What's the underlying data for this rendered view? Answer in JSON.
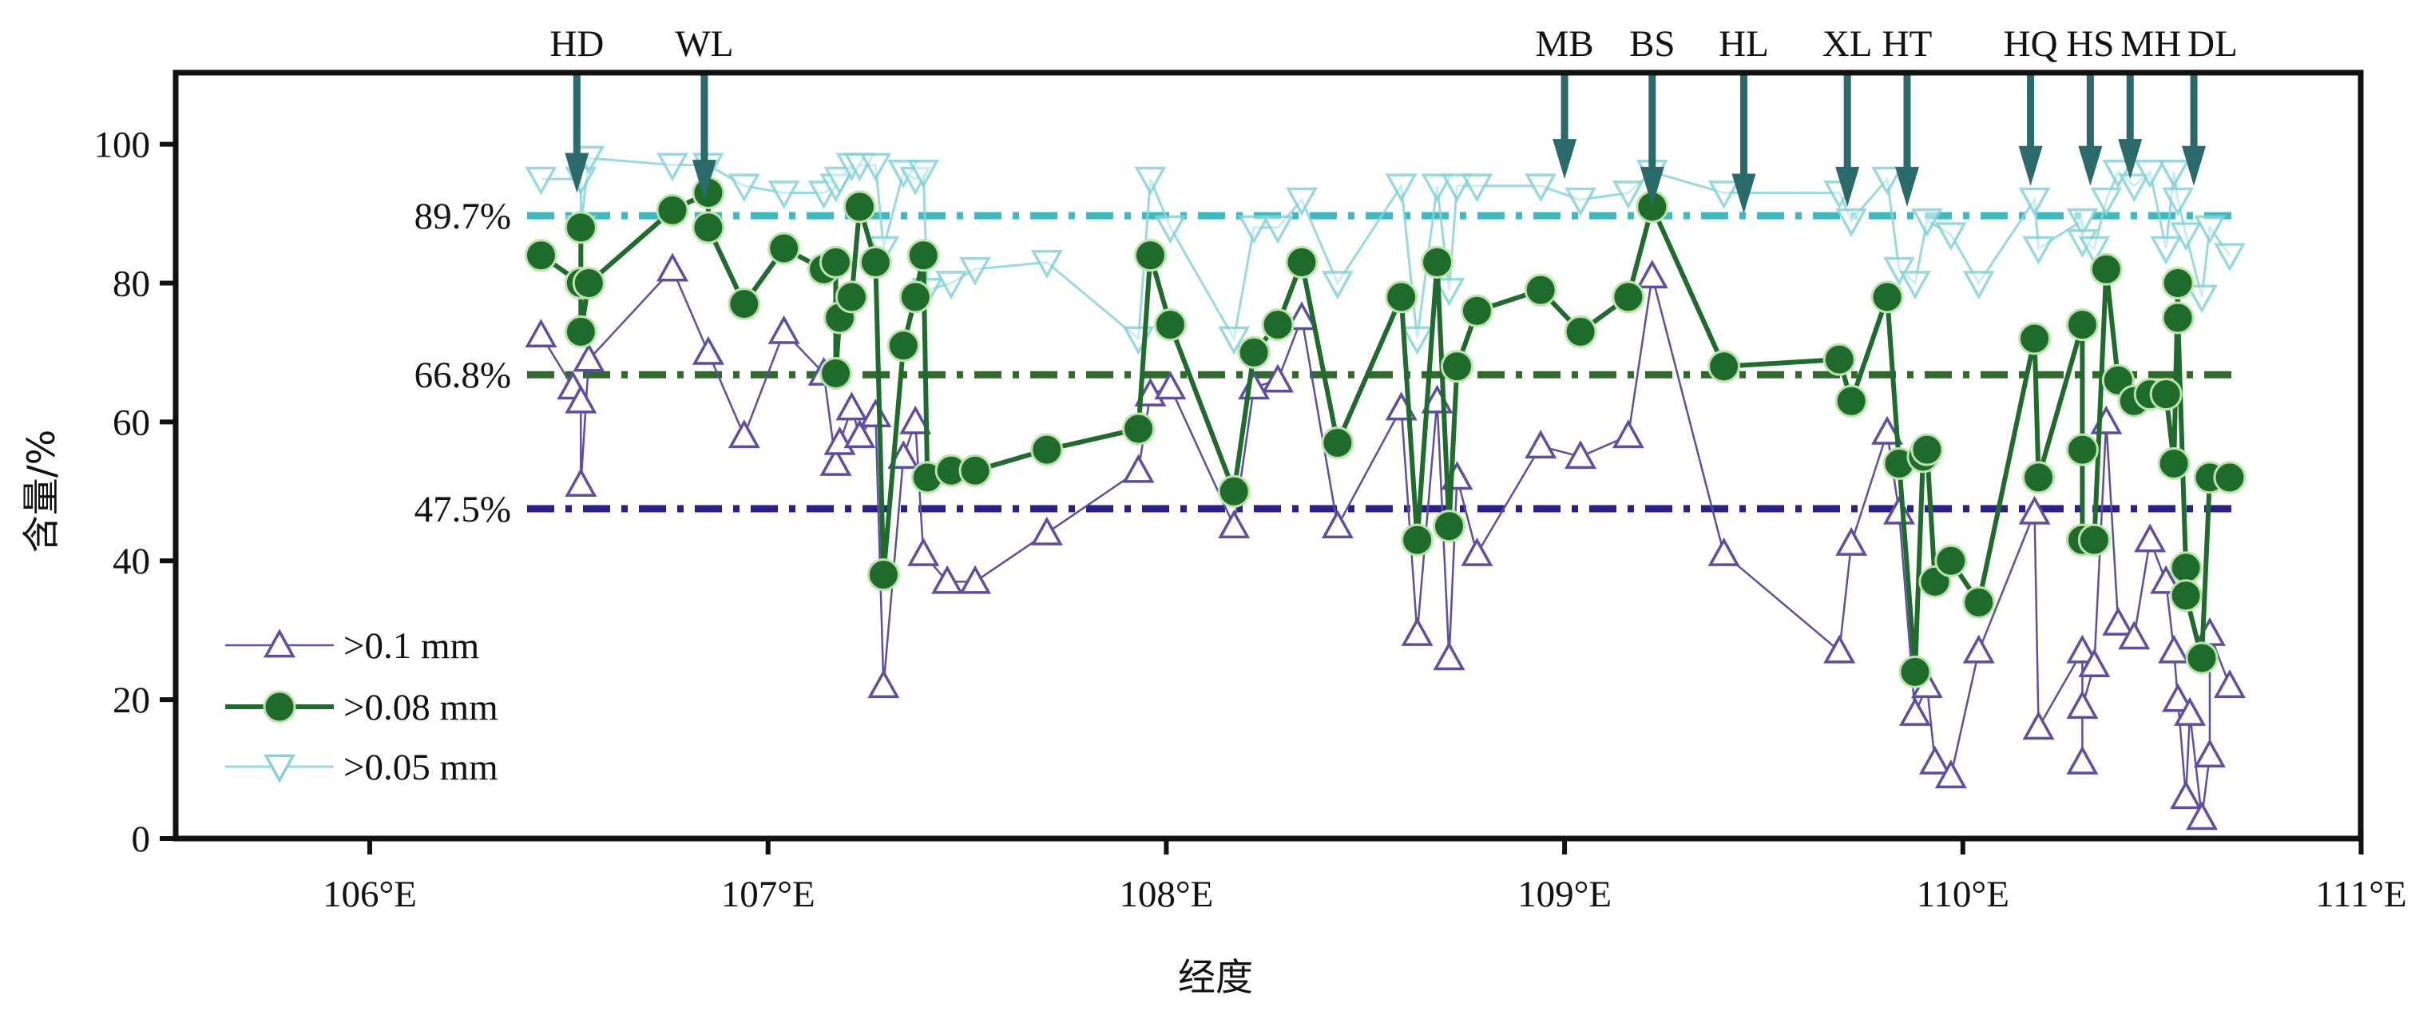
{
  "chart_data": {
    "type": "line",
    "title": "",
    "xlabel": "经度",
    "ylabel": "含量/%",
    "xlim": [
      105.51,
      111
    ],
    "ylim": [
      0,
      110
    ],
    "xticks": [
      106,
      107,
      108,
      109,
      110,
      111
    ],
    "xtick_labels": [
      "106°E",
      "107°E",
      "108°E",
      "109°E",
      "110°E",
      "111°E"
    ],
    "yticks": [
      0,
      20,
      40,
      60,
      80,
      100
    ],
    "ytick_labels": [
      "0",
      "20",
      "40",
      "60",
      "80",
      "100"
    ],
    "grid": false,
    "legend_position": "bottom-left",
    "colors": {
      "tri": "#5b4fa3",
      "circle": "#1f6b2b",
      "halo": "#b9e6a8",
      "invtri": "#86d3d8",
      "arrow": "#2a6a6b"
    },
    "series": [
      {
        "name": ">0.05 mm",
        "marker": "triangle-down",
        "points": [
          [
            106.43,
            95
          ],
          [
            106.53,
            95
          ],
          [
            106.53,
            88
          ],
          [
            106.55,
            98
          ],
          [
            106.76,
            97
          ],
          [
            106.85,
            97
          ],
          [
            106.94,
            94
          ],
          [
            107.04,
            93
          ],
          [
            107.14,
            93
          ],
          [
            107.17,
            94
          ],
          [
            107.18,
            95
          ],
          [
            107.21,
            97
          ],
          [
            107.23,
            97
          ],
          [
            107.27,
            97
          ],
          [
            107.29,
            85
          ],
          [
            107.34,
            96
          ],
          [
            107.37,
            95
          ],
          [
            107.39,
            96
          ],
          [
            107.4,
            79
          ],
          [
            107.46,
            80
          ],
          [
            107.52,
            82
          ],
          [
            107.7,
            83
          ],
          [
            107.93,
            72
          ],
          [
            107.96,
            95
          ],
          [
            108.01,
            88
          ],
          [
            108.17,
            72
          ],
          [
            108.22,
            88
          ],
          [
            108.28,
            88
          ],
          [
            108.34,
            92
          ],
          [
            108.43,
            80
          ],
          [
            108.59,
            94
          ],
          [
            108.63,
            72
          ],
          [
            108.68,
            94
          ],
          [
            108.71,
            79
          ],
          [
            108.73,
            94
          ],
          [
            108.78,
            94
          ],
          [
            108.94,
            94
          ],
          [
            109.04,
            92
          ],
          [
            109.16,
            93
          ],
          [
            109.22,
            96
          ],
          [
            109.4,
            93
          ],
          [
            109.69,
            93
          ],
          [
            109.72,
            89
          ],
          [
            109.81,
            95
          ],
          [
            109.84,
            82
          ],
          [
            109.88,
            80
          ],
          [
            109.91,
            89
          ],
          [
            109.97,
            87
          ],
          [
            110.04,
            80
          ],
          [
            110.18,
            92
          ],
          [
            110.19,
            85
          ],
          [
            110.3,
            89
          ],
          [
            110.3,
            86
          ],
          [
            110.33,
            85
          ],
          [
            110.36,
            92
          ],
          [
            110.39,
            96
          ],
          [
            110.43,
            94
          ],
          [
            110.47,
            96
          ],
          [
            110.51,
            85
          ],
          [
            110.53,
            96
          ],
          [
            110.54,
            92
          ],
          [
            110.56,
            87
          ],
          [
            110.6,
            78
          ],
          [
            110.62,
            88
          ],
          [
            110.67,
            84
          ]
        ]
      },
      {
        "name": ">0.1 mm",
        "marker": "triangle-up",
        "points": [
          [
            106.43,
            72.5
          ],
          [
            106.51,
            65
          ],
          [
            106.53,
            63
          ],
          [
            106.53,
            51
          ],
          [
            106.55,
            69
          ],
          [
            106.76,
            82
          ],
          [
            106.85,
            70
          ],
          [
            106.94,
            58
          ],
          [
            107.04,
            73
          ],
          [
            107.14,
            67
          ],
          [
            107.17,
            54
          ],
          [
            107.18,
            57
          ],
          [
            107.21,
            62
          ],
          [
            107.23,
            58
          ],
          [
            107.27,
            61
          ],
          [
            107.29,
            22
          ],
          [
            107.34,
            55
          ],
          [
            107.37,
            60
          ],
          [
            107.39,
            41
          ],
          [
            107.45,
            37
          ],
          [
            107.52,
            37
          ],
          [
            107.7,
            44
          ],
          [
            107.93,
            53
          ],
          [
            107.96,
            64
          ],
          [
            108.01,
            65
          ],
          [
            108.17,
            45
          ],
          [
            108.22,
            65
          ],
          [
            108.28,
            66
          ],
          [
            108.34,
            75
          ],
          [
            108.43,
            45
          ],
          [
            108.59,
            62
          ],
          [
            108.63,
            29.5
          ],
          [
            108.68,
            63
          ],
          [
            108.71,
            26
          ],
          [
            108.73,
            52
          ],
          [
            108.78,
            41
          ],
          [
            108.94,
            56.5
          ],
          [
            109.04,
            55
          ],
          [
            109.16,
            58
          ],
          [
            109.22,
            81
          ],
          [
            109.4,
            41
          ],
          [
            109.69,
            27
          ],
          [
            109.72,
            42.5
          ],
          [
            109.81,
            58.5
          ],
          [
            109.84,
            47
          ],
          [
            109.88,
            18
          ],
          [
            109.91,
            22
          ],
          [
            109.93,
            11
          ],
          [
            109.97,
            9
          ],
          [
            110.04,
            27
          ],
          [
            110.18,
            47
          ],
          [
            110.19,
            16
          ],
          [
            110.3,
            27
          ],
          [
            110.3,
            11
          ],
          [
            110.3,
            19
          ],
          [
            110.33,
            25
          ],
          [
            110.36,
            60
          ],
          [
            110.39,
            31
          ],
          [
            110.43,
            29
          ],
          [
            110.47,
            43
          ],
          [
            110.51,
            37
          ],
          [
            110.53,
            27
          ],
          [
            110.54,
            20
          ],
          [
            110.56,
            6
          ],
          [
            110.57,
            18
          ],
          [
            110.6,
            3
          ],
          [
            110.62,
            12
          ],
          [
            110.62,
            29.5
          ],
          [
            110.67,
            22
          ]
        ]
      },
      {
        "name": ">0.08 mm",
        "marker": "circle",
        "points": [
          [
            106.43,
            84
          ],
          [
            106.53,
            80
          ],
          [
            106.53,
            88
          ],
          [
            106.53,
            73
          ],
          [
            106.55,
            80
          ],
          [
            106.76,
            90.5
          ],
          [
            106.85,
            93
          ],
          [
            106.85,
            88
          ],
          [
            106.94,
            77
          ],
          [
            107.04,
            85
          ],
          [
            107.14,
            82
          ],
          [
            107.17,
            83
          ],
          [
            107.17,
            67
          ],
          [
            107.18,
            75
          ],
          [
            107.21,
            78
          ],
          [
            107.23,
            91
          ],
          [
            107.27,
            83
          ],
          [
            107.29,
            38
          ],
          [
            107.34,
            71
          ],
          [
            107.37,
            78
          ],
          [
            107.39,
            84
          ],
          [
            107.4,
            52
          ],
          [
            107.46,
            53
          ],
          [
            107.52,
            53
          ],
          [
            107.7,
            56
          ],
          [
            107.93,
            59
          ],
          [
            107.96,
            84
          ],
          [
            108.01,
            74
          ],
          [
            108.17,
            50
          ],
          [
            108.22,
            70
          ],
          [
            108.28,
            74
          ],
          [
            108.34,
            83
          ],
          [
            108.43,
            57
          ],
          [
            108.59,
            78
          ],
          [
            108.63,
            43
          ],
          [
            108.68,
            83
          ],
          [
            108.71,
            45
          ],
          [
            108.73,
            68
          ],
          [
            108.78,
            76
          ],
          [
            108.94,
            79
          ],
          [
            109.04,
            73
          ],
          [
            109.16,
            78
          ],
          [
            109.22,
            91
          ],
          [
            109.4,
            68
          ],
          [
            109.69,
            69
          ],
          [
            109.72,
            63
          ],
          [
            109.81,
            78
          ],
          [
            109.84,
            54
          ],
          [
            109.88,
            24
          ],
          [
            109.9,
            55
          ],
          [
            109.91,
            56
          ],
          [
            109.93,
            37
          ],
          [
            109.97,
            40
          ],
          [
            110.04,
            34
          ],
          [
            110.18,
            72
          ],
          [
            110.19,
            52
          ],
          [
            110.3,
            74
          ],
          [
            110.3,
            56
          ],
          [
            110.3,
            43
          ],
          [
            110.33,
            43
          ],
          [
            110.36,
            82
          ],
          [
            110.39,
            66
          ],
          [
            110.43,
            63
          ],
          [
            110.47,
            64
          ],
          [
            110.51,
            64
          ],
          [
            110.53,
            54
          ],
          [
            110.54,
            80
          ],
          [
            110.54,
            75
          ],
          [
            110.56,
            39
          ],
          [
            110.56,
            35
          ],
          [
            110.6,
            26
          ],
          [
            110.62,
            52
          ],
          [
            110.67,
            52
          ]
        ]
      }
    ],
    "reference_lines": [
      {
        "label": "89.7%",
        "value": 89.7,
        "color": "#3fb9c1"
      },
      {
        "label": "66.8%",
        "value": 66.8,
        "color": "#2f6a2a"
      },
      {
        "label": "47.5%",
        "value": 47.5,
        "color": "#2b1f8c"
      }
    ],
    "annotations": [
      {
        "label": "HD",
        "x": 106.52,
        "arrow_to": 93
      },
      {
        "label": "WL",
        "x": 106.84,
        "arrow_to": 92
      },
      {
        "label": "MB",
        "x": 109.0,
        "arrow_to": 95
      },
      {
        "label": "BS",
        "x": 109.22,
        "arrow_to": 91
      },
      {
        "label": "HL",
        "x": 109.45,
        "arrow_to": 90
      },
      {
        "label": "XL",
        "x": 109.71,
        "arrow_to": 91
      },
      {
        "label": "HT",
        "x": 109.86,
        "arrow_to": 91
      },
      {
        "label": "HQ",
        "x": 110.17,
        "arrow_to": 94
      },
      {
        "label": "HS",
        "x": 110.32,
        "arrow_to": 94
      },
      {
        "label": "MH",
        "x": 110.42,
        "arrow_to": 95
      },
      {
        "label": "DL",
        "x": 110.58,
        "arrow_to": 94
      }
    ]
  }
}
